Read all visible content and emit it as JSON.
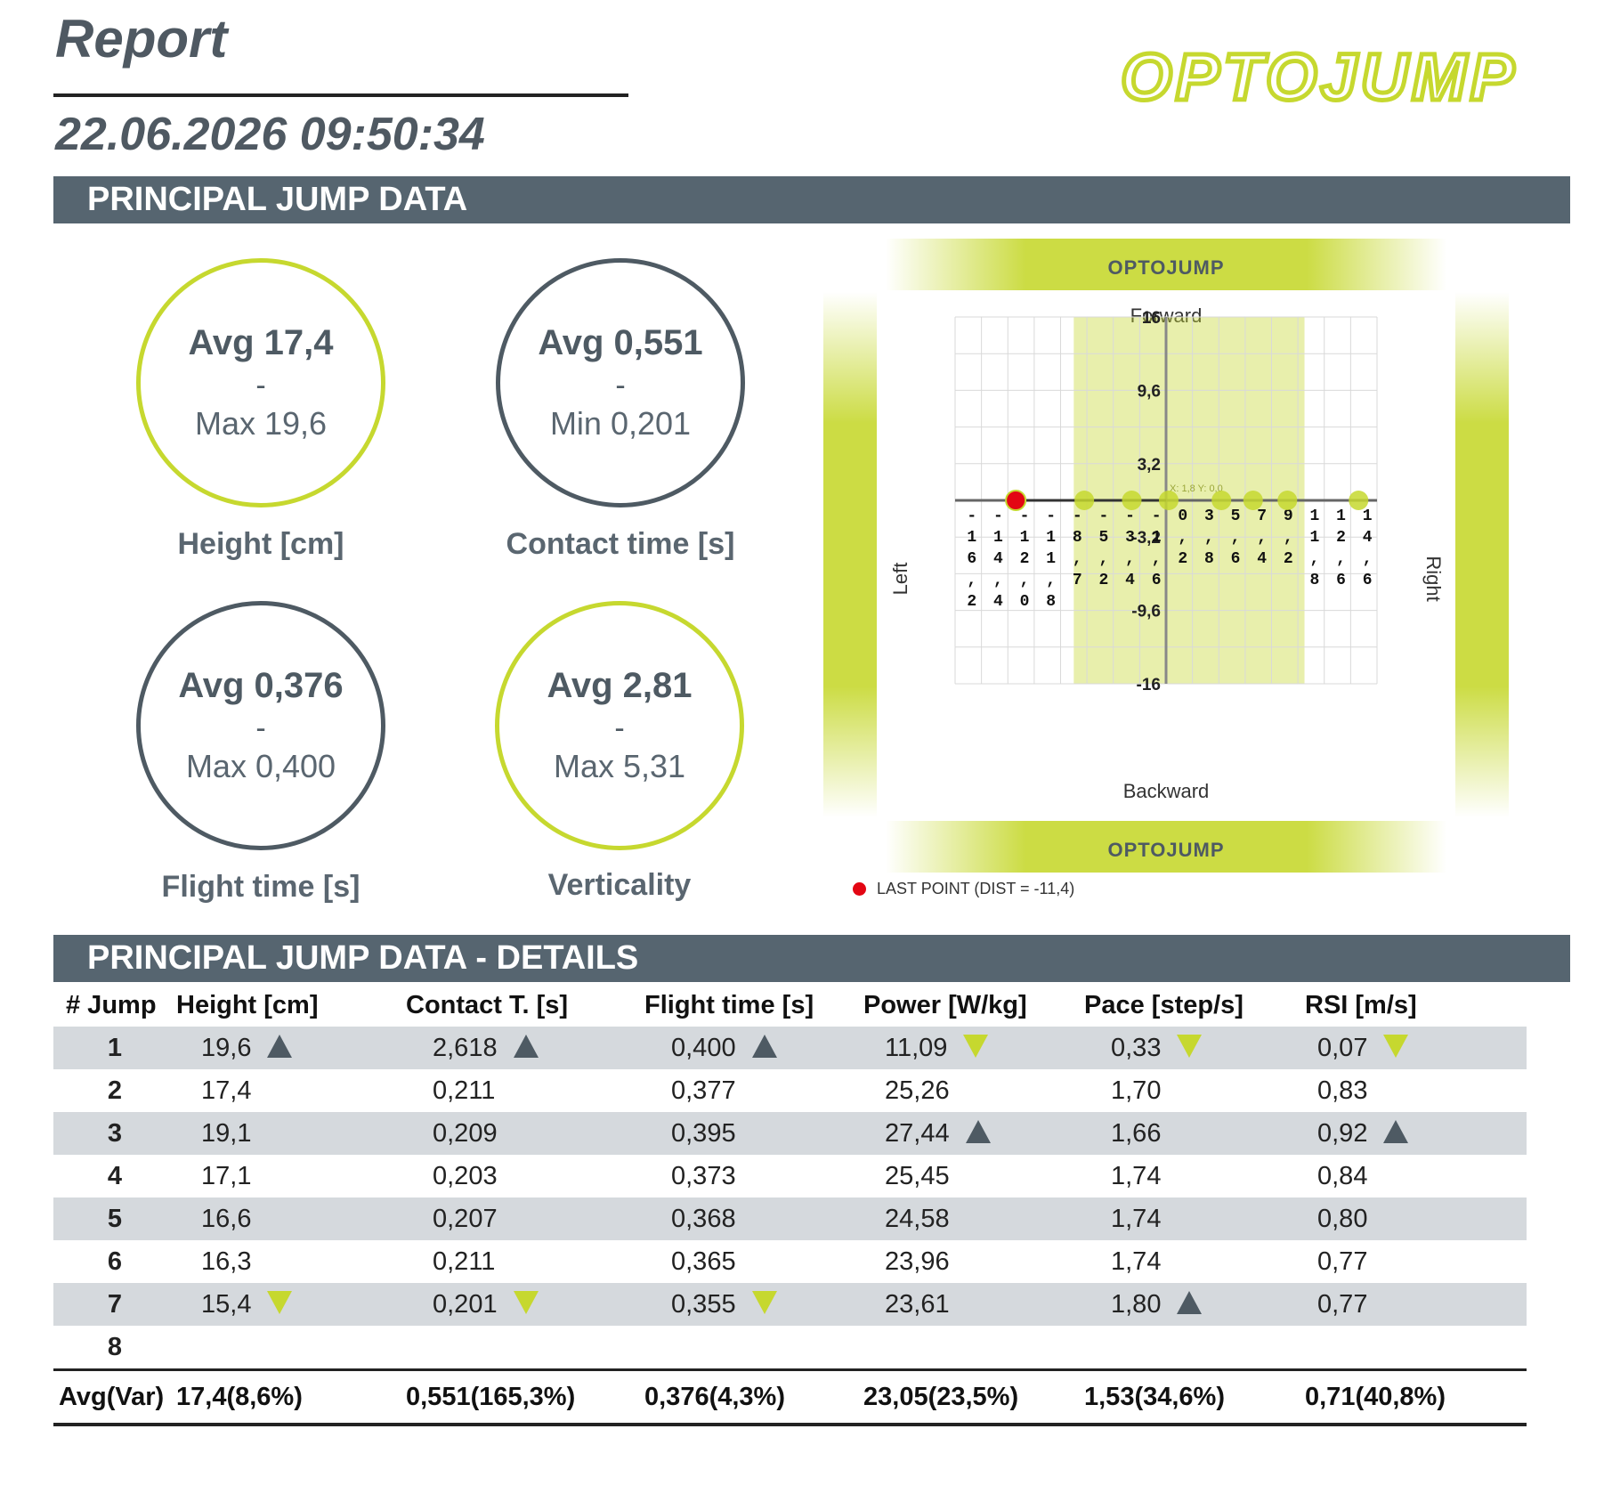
{
  "report": {
    "title": "Report",
    "datetime": "22.06.2026 09:50:34",
    "brand": "OPTOJUMP"
  },
  "sections": {
    "principal": "PRINCIPAL JUMP DATA",
    "details": "PRINCIPAL JUMP DATA - DETAILS"
  },
  "metrics": [
    {
      "avg": "Avg 17,4",
      "dash": "-",
      "sub": "Max 19,6",
      "label": "Height [cm]",
      "ring_color": "#c6d82f"
    },
    {
      "avg": "Avg 0,551",
      "dash": "-",
      "sub": "Min 0,201",
      "label": "Contact time [s]",
      "ring_color": "#4e5a63"
    },
    {
      "avg": "Avg 0,376",
      "dash": "-",
      "sub": "Max 0,400",
      "label": "Flight time [s]",
      "ring_color": "#4e5a63"
    },
    {
      "avg": "Avg 2,81",
      "dash": "-",
      "sub": "Max 5,31",
      "label": "Verticality",
      "ring_color": "#c6d82f"
    }
  ],
  "compass": {
    "brand_top": "OPTOJUMP",
    "brand_bottom": "OPTOJUMP",
    "forward": "Forward",
    "backward": "Backward",
    "left": "Left",
    "right": "Right",
    "crosshair": "X: 1,8 Y: 0,0",
    "last_point": "LAST POINT (DIST = -11,4)"
  },
  "chart_data": {
    "type": "scatter",
    "xlim": [
      -16,
      16
    ],
    "ylim": [
      -16,
      16
    ],
    "yticks": [
      "16",
      "9,6",
      "3,2",
      "-3,2",
      "-9,6",
      "-16"
    ],
    "x_band": [
      -7.0,
      10.5
    ],
    "points": [
      {
        "x": -11.4,
        "y": 0,
        "label": "-11,4",
        "last": true
      },
      {
        "x": -6.2,
        "y": 0,
        "label": "-6,2",
        "last": false
      },
      {
        "x": -2.6,
        "y": 0,
        "label": "-2,6",
        "last": false
      },
      {
        "x": 0.2,
        "y": 0,
        "label": "0,2",
        "last": false
      },
      {
        "x": 4.2,
        "y": 0,
        "label": "4,2",
        "last": false
      },
      {
        "x": 6.6,
        "y": 0,
        "label": "6,6",
        "last": false
      },
      {
        "x": 9.2,
        "y": 0,
        "label": "9,2",
        "last": false
      },
      {
        "x": 14.6,
        "y": 0,
        "label": "14,6",
        "last": false
      }
    ],
    "axis_labels": [
      "-16,2",
      "-14,4",
      "-12,0",
      "-11,8",
      "-8,7",
      "-5,2",
      "-3,4",
      "-1,6",
      "0,2",
      "3,8",
      "5,6",
      "7,4",
      "9,2",
      "11,8",
      "12,6",
      "14,6"
    ]
  },
  "table": {
    "headers": [
      "# Jump",
      "Height [cm]",
      "Contact T. [s]",
      "Flight time [s]",
      "Power [W/kg]",
      "Pace [step/s]",
      "RSI [m/s]"
    ],
    "rows": [
      {
        "n": "1",
        "v": [
          "19,6",
          "2,618",
          "0,400",
          "11,09",
          "0,33",
          "0,07"
        ],
        "m": [
          "up",
          "up",
          "up",
          "down",
          "down",
          "down"
        ]
      },
      {
        "n": "2",
        "v": [
          "17,4",
          "0,211",
          "0,377",
          "25,26",
          "1,70",
          "0,83"
        ],
        "m": [
          "",
          "",
          "",
          "",
          "",
          ""
        ]
      },
      {
        "n": "3",
        "v": [
          "19,1",
          "0,209",
          "0,395",
          "27,44",
          "1,66",
          "0,92"
        ],
        "m": [
          "",
          "",
          "",
          "up",
          "",
          "up"
        ]
      },
      {
        "n": "4",
        "v": [
          "17,1",
          "0,203",
          "0,373",
          "25,45",
          "1,74",
          "0,84"
        ],
        "m": [
          "",
          "",
          "",
          "",
          "",
          ""
        ]
      },
      {
        "n": "5",
        "v": [
          "16,6",
          "0,207",
          "0,368",
          "24,58",
          "1,74",
          "0,80"
        ],
        "m": [
          "",
          "",
          "",
          "",
          "",
          ""
        ]
      },
      {
        "n": "6",
        "v": [
          "16,3",
          "0,211",
          "0,365",
          "23,96",
          "1,74",
          "0,77"
        ],
        "m": [
          "",
          "",
          "",
          "",
          "",
          ""
        ]
      },
      {
        "n": "7",
        "v": [
          "15,4",
          "0,201",
          "0,355",
          "23,61",
          "1,80",
          "0,77"
        ],
        "m": [
          "down",
          "down",
          "down",
          "",
          "up",
          ""
        ]
      },
      {
        "n": "8",
        "v": [
          "",
          "",
          "",
          "",
          "",
          ""
        ],
        "m": [
          "",
          "",
          "",
          "",
          "",
          ""
        ]
      }
    ],
    "footer": [
      "Avg(Var)",
      "17,4(8,6%)",
      "0,551(165,3%)",
      "0,376(4,3%)",
      "23,05(23,5%)",
      "1,53(34,6%)",
      "0,71(40,8%)"
    ]
  },
  "colors": {
    "accent": "#c6d82f",
    "dark": "#4e5a63",
    "bar": "#566570",
    "row_shade": "#d5d9dd",
    "last_point": "#e30613"
  }
}
